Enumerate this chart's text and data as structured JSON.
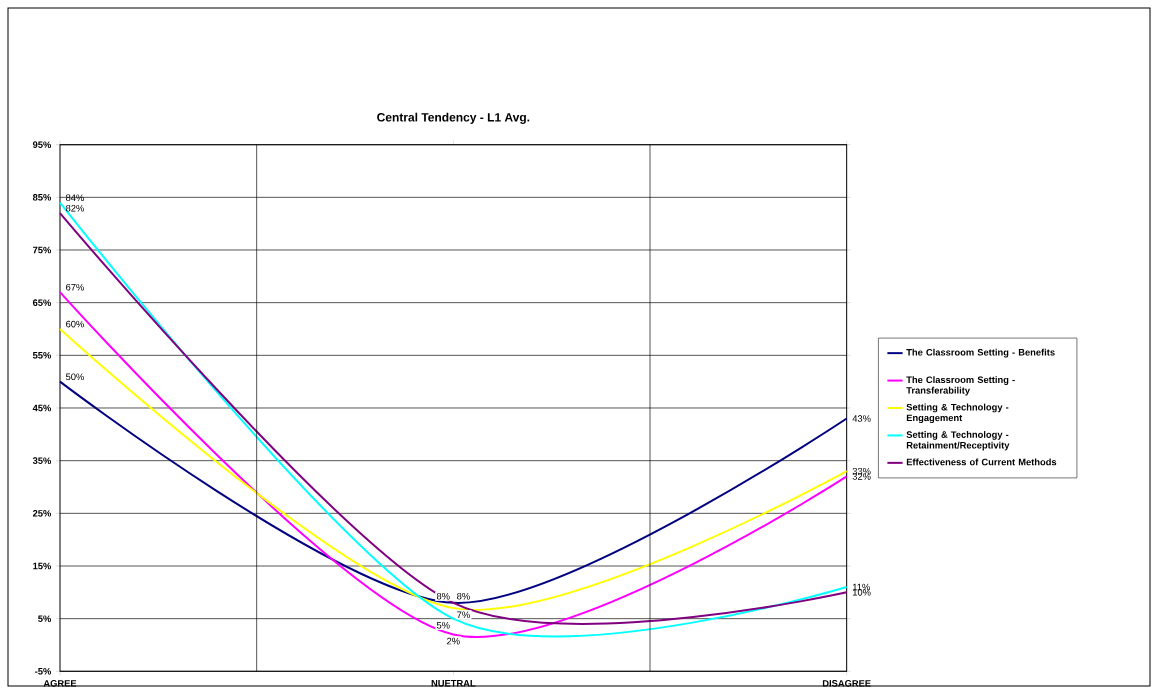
{
  "chart_data": {
    "type": "line",
    "title": "Central Tendency - L1 Avg.",
    "categories": [
      "AGREE",
      "NUETRAL",
      "DISAGREE"
    ],
    "series": [
      {
        "name": "The Classroom Setting - Benefits",
        "color": "#000080",
        "values": [
          50,
          8,
          43
        ],
        "value_labels": [
          "50%",
          "8%",
          "43%"
        ]
      },
      {
        "name": "The Classroom Setting - Transferability",
        "color": "#ff00ff",
        "values": [
          67,
          2,
          32
        ],
        "value_labels": [
          "67%",
          "2%",
          "32%"
        ]
      },
      {
        "name": "Setting & Technology - Engagement",
        "color": "#ffff00",
        "values": [
          60,
          7,
          33
        ],
        "value_labels": [
          "60%",
          "7%",
          "33%"
        ]
      },
      {
        "name": "Setting & Technology - Retainment/Receptivity",
        "color": "#00ffff",
        "values": [
          84,
          5,
          11
        ],
        "value_labels": [
          "84%",
          "5%",
          "11%"
        ]
      },
      {
        "name": "Effectiveness of Current Methods",
        "color": "#800080",
        "values": [
          82,
          8,
          10
        ],
        "value_labels": [
          "82%",
          "8%",
          "10%"
        ]
      }
    ],
    "ylim": [
      -5,
      95
    ],
    "yticks": [
      {
        "value": -5,
        "label": "-5%"
      },
      {
        "value": 5,
        "label": "5%"
      },
      {
        "value": 15,
        "label": "15%"
      },
      {
        "value": 25,
        "label": "25%"
      },
      {
        "value": 35,
        "label": "35%"
      },
      {
        "value": 45,
        "label": "45%"
      },
      {
        "value": 55,
        "label": "55%"
      },
      {
        "value": 65,
        "label": "65%"
      },
      {
        "value": 75,
        "label": "75%"
      },
      {
        "value": 85,
        "label": "85%"
      },
      {
        "value": 95,
        "label": "95%"
      }
    ],
    "grid": true,
    "legend": "right",
    "marker": "none",
    "line_style": "solid"
  }
}
